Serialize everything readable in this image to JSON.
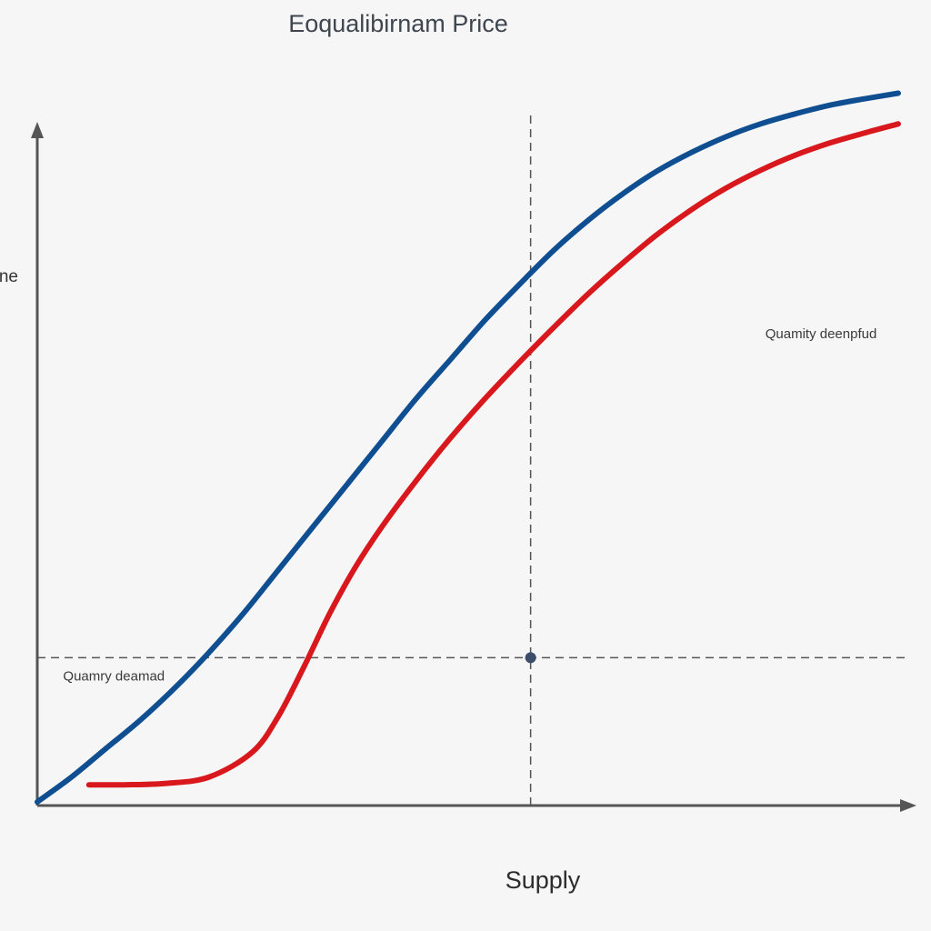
{
  "chart_data": {
    "type": "line",
    "title": "Eoqualibirnam Price",
    "xlabel": "Supply",
    "ylabel": "ne",
    "xlim": [
      0,
      100
    ],
    "ylim": [
      0,
      100
    ],
    "grid": false,
    "series": [
      {
        "name": "",
        "color": "#0f4f91",
        "x": [
          0,
          4,
          8,
          12,
          16,
          20,
          24,
          28,
          32,
          36,
          40,
          44,
          48,
          52,
          56,
          60,
          64,
          68,
          72,
          76,
          80,
          84,
          88,
          92,
          96,
          100
        ],
        "y": [
          0,
          3.5,
          7.5,
          11.5,
          16,
          21,
          26.5,
          32.5,
          38.5,
          44.5,
          50.5,
          56.5,
          62,
          67.5,
          72.5,
          77.3,
          81.5,
          85.2,
          88.4,
          91,
          93.2,
          95,
          96.4,
          97.6,
          98.5,
          99.3
        ]
      },
      {
        "name": "",
        "color": "#d8181c",
        "x": [
          6,
          10,
          15,
          20,
          25,
          28,
          31,
          34,
          37,
          40,
          44,
          48,
          52,
          56,
          60,
          64,
          68,
          72,
          76,
          80,
          84,
          88,
          92,
          96,
          100
        ],
        "y": [
          2.4,
          2.4,
          2.6,
          3.5,
          7,
          12,
          19,
          26.5,
          33,
          38.5,
          45,
          51,
          56.5,
          61.6,
          66.5,
          71.2,
          75.5,
          79.5,
          83,
          86,
          88.5,
          90.6,
          92.3,
          93.7,
          95
        ]
      }
    ],
    "equilibrium": {
      "x": 57.3,
      "y": 20.2
    },
    "annotations": [
      {
        "text": "Quamity deenpfud",
        "x": 97.5,
        "y": 65
      },
      {
        "text": "Quamry deamad",
        "x": 3,
        "y": 17
      }
    ]
  }
}
